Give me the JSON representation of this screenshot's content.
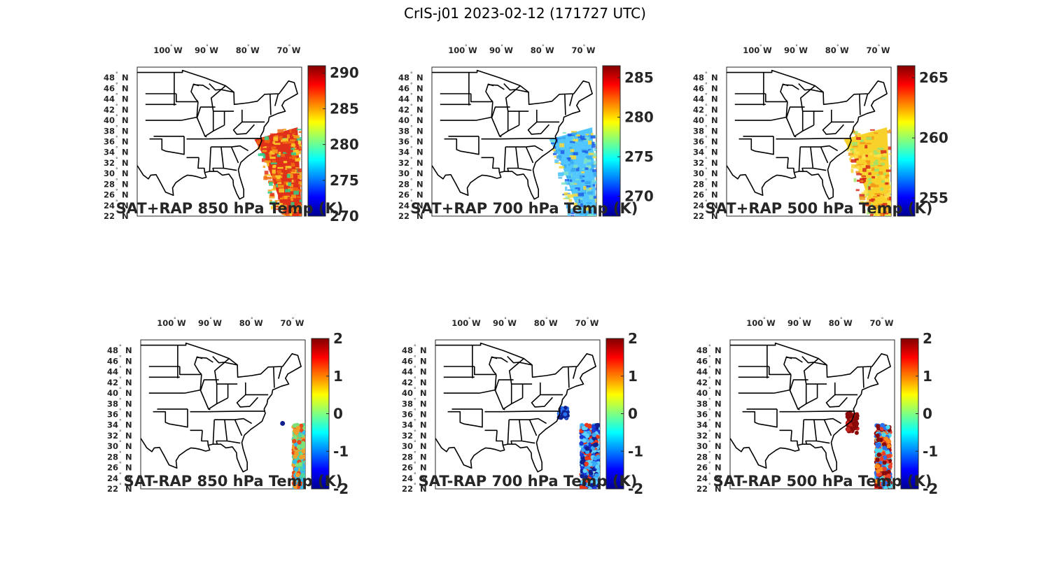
{
  "title": "CrIS-j01 2023-02-12 (171727 UTC)",
  "lon_labels": [
    "100",
    "90",
    "80",
    "70"
  ],
  "lon_suffix": "W",
  "lat_labels": [
    "48",
    "46",
    "44",
    "42",
    "40",
    "38",
    "36",
    "34",
    "32",
    "30",
    "28",
    "26",
    "24",
    "22"
  ],
  "lat_suffix": "N",
  "map_extent": {
    "lon": [
      -106,
      -66
    ],
    "lat": [
      22,
      50
    ]
  },
  "panels": [
    {
      "title": "SAT+RAP 850 hPa Temp (K)",
      "colorbar": {
        "ticks": [
          "270",
          "275",
          "280",
          "285",
          "290"
        ],
        "range": [
          270,
          291
        ]
      },
      "field": "swath",
      "colors": [
        "#e0301a",
        "#f06a10",
        "#f7a21a",
        "#ffd42a",
        "#2ecc8a"
      ]
    },
    {
      "title": "SAT+RAP 700 hPa Temp (K)",
      "colorbar": {
        "ticks": [
          "270",
          "275",
          "280",
          "285"
        ],
        "range": [
          267.5,
          286.5
        ]
      },
      "field": "swath",
      "colors": [
        "#52c7ff",
        "#3aa8f0",
        "#7fe3c5",
        "#f7d83a",
        "#1f5ee8"
      ]
    },
    {
      "title": "SAT+RAP 500 hPa Temp (K)",
      "colorbar": {
        "ticks": [
          "255",
          "260",
          "265"
        ],
        "range": [
          253.5,
          266
        ]
      },
      "field": "swath",
      "colors": [
        "#f8d22b",
        "#ffe34a",
        "#9fe36a",
        "#f39a1a",
        "#d62a1a"
      ]
    },
    {
      "title": "SAT-RAP 850 hPa Temp (K)",
      "colorbar": {
        "ticks": [
          "-2",
          "-1",
          "0",
          "1",
          "2"
        ],
        "range": [
          -2,
          2
        ]
      },
      "field": "dots",
      "colors": [
        "#4bd5a0",
        "#7ee07a",
        "#f0a02a",
        "#e84a1a",
        "#34b8f0"
      ]
    },
    {
      "title": "SAT-RAP 700 hPa Temp (K)",
      "colorbar": {
        "ticks": [
          "-2",
          "-1",
          "0",
          "1",
          "2"
        ],
        "range": [
          -2,
          2
        ]
      },
      "field": "dots",
      "colors": [
        "#1a3ad8",
        "#10208f",
        "#38a8f8",
        "#5fd2ff",
        "#e83a1a"
      ]
    },
    {
      "title": "SAT-RAP 500 hPa Temp (K)",
      "colorbar": {
        "ticks": [
          "-2",
          "-1",
          "0",
          "1",
          "2"
        ],
        "range": [
          -2,
          2
        ]
      },
      "field": "dots",
      "colors": [
        "#ff8c1a",
        "#e8402a",
        "#2a70f0",
        "#4ad8f0",
        "#8a0a0a"
      ]
    }
  ],
  "jet_colormap": [
    "#00008f",
    "#0000ff",
    "#0080ff",
    "#00ffff",
    "#80ff80",
    "#ffff00",
    "#ff8000",
    "#ff0000",
    "#800000"
  ]
}
